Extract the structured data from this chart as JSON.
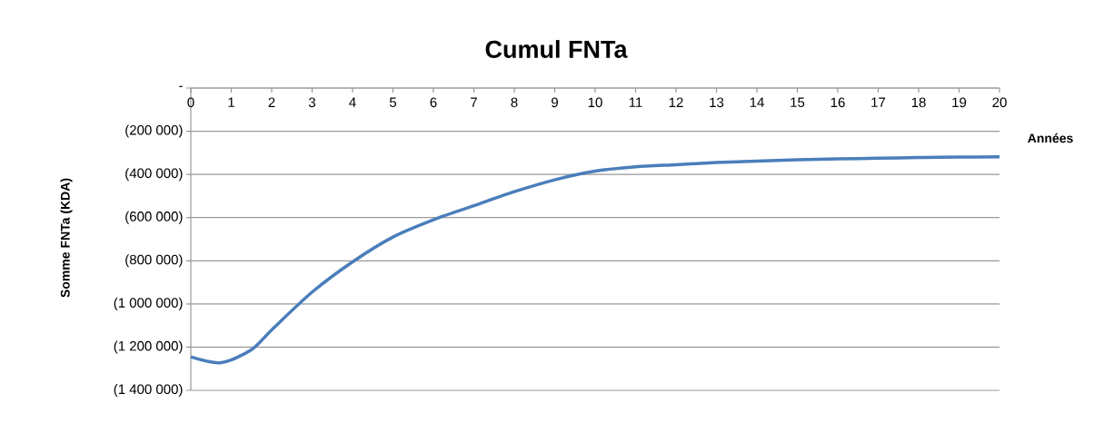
{
  "chart_data": {
    "type": "line",
    "title": "Cumul FNTa",
    "xlabel": "Années",
    "ylabel": "Somme FNTa (KDA)",
    "x": [
      0,
      0.75,
      1.5,
      2,
      3,
      4,
      5,
      6,
      7,
      8,
      9,
      10,
      11,
      12,
      13,
      14,
      15,
      16,
      17,
      18,
      19,
      20
    ],
    "series": [
      {
        "color": "#4a7ebb",
        "values": [
          -1245000,
          -1272000,
          -1212000,
          -1120000,
          -945000,
          -805000,
          -690000,
          -610000,
          -545000,
          -480000,
          -425000,
          -385000,
          -365000,
          -355000,
          -345000,
          -338000,
          -332000,
          -328000,
          -325000,
          -322000,
          -320000,
          -318000
        ]
      }
    ],
    "xlim": [
      0,
      20
    ],
    "xticks": [
      0,
      1,
      2,
      3,
      4,
      5,
      6,
      7,
      8,
      9,
      10,
      11,
      12,
      13,
      14,
      15,
      16,
      17,
      18,
      19,
      20
    ],
    "ylim": [
      -1400000,
      0
    ],
    "yticks": [
      {
        "value": 0,
        "label": "-"
      },
      {
        "value": -200000,
        "label": "(200 000)"
      },
      {
        "value": -400000,
        "label": "(400 000)"
      },
      {
        "value": -600000,
        "label": "(600 000)"
      },
      {
        "value": -800000,
        "label": "(800 000)"
      },
      {
        "value": -1000000,
        "label": "(1 000 000)"
      },
      {
        "value": -1200000,
        "label": "(1 200 000)"
      },
      {
        "value": -1400000,
        "label": "(1 400 000)"
      }
    ],
    "grid": "y",
    "marker": "none",
    "line_style": "solid"
  }
}
